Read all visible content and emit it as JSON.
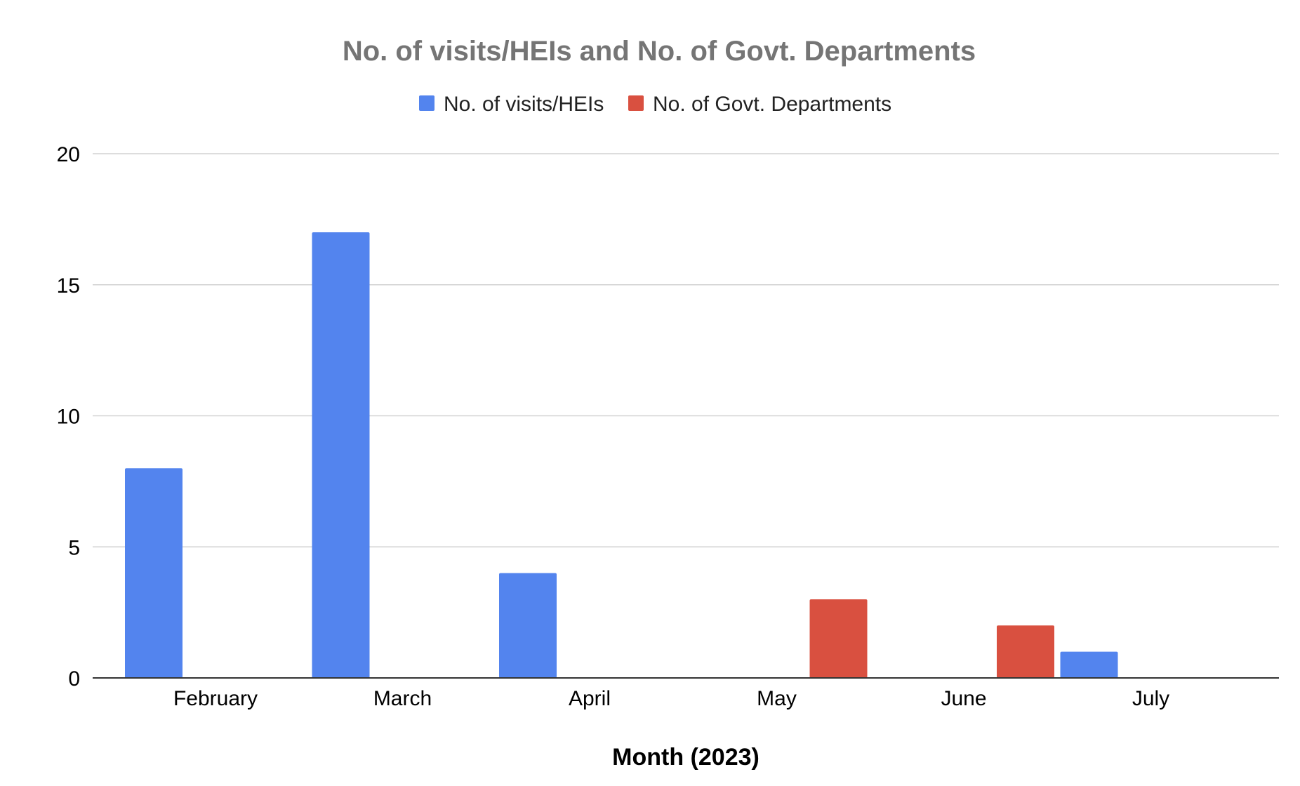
{
  "chart_data": {
    "type": "bar",
    "title": "No. of visits/HEIs and No. of Govt. Departments",
    "xlabel": "Month (2023)",
    "ylabel": "",
    "categories": [
      "February",
      "March",
      "April",
      "May",
      "June",
      "July"
    ],
    "series": [
      {
        "name": "No. of visits/HEIs",
        "color": "#5384EE",
        "values": [
          8,
          17,
          4,
          null,
          null,
          1
        ]
      },
      {
        "name": "No. of Govt. Departments",
        "color": "#D95040",
        "values": [
          null,
          null,
          null,
          3,
          2,
          null
        ]
      }
    ],
    "ylim": [
      0,
      20
    ],
    "yticks": [
      "0",
      "5",
      "10",
      "15",
      "20"
    ],
    "grid": true,
    "legend_position": "top-center"
  }
}
